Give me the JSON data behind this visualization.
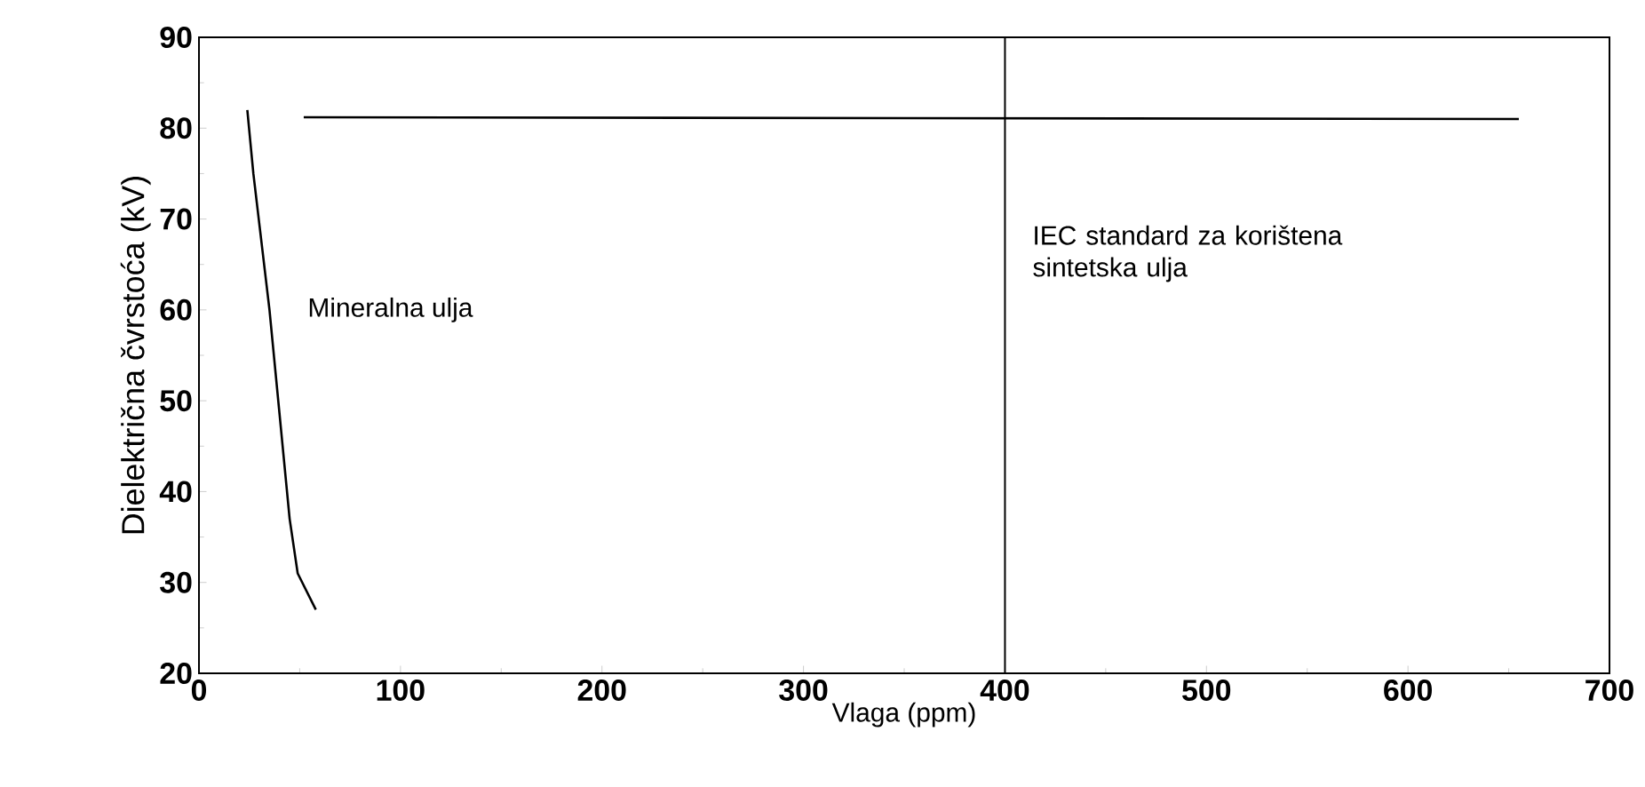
{
  "chart_data": {
    "type": "line",
    "xlabel": "Vlaga (ppm)",
    "ylabel": "Dielektrična čvrstoća (kV)",
    "xlim": [
      0,
      700
    ],
    "xticks": [
      0,
      100,
      200,
      300,
      400,
      500,
      600,
      700
    ],
    "ylim": [
      20,
      90
    ],
    "yticks": [
      20,
      30,
      40,
      50,
      60,
      70,
      80,
      90
    ],
    "grid": false,
    "legend": false,
    "marker": "none",
    "line_style": "solid",
    "series": [
      {
        "name": "Mineralna ulja",
        "color": "#000000",
        "x": [
          24,
          27,
          35,
          40,
          45,
          49,
          58
        ],
        "values": [
          82,
          75,
          60,
          48.5,
          37,
          31,
          27
        ]
      },
      {
        "color": "#000000",
        "x": [
          52,
          655
        ],
        "values": [
          81.2,
          81
        ]
      }
    ],
    "ref_lines": [
      {
        "axis": "x",
        "value": 400,
        "label": "IEC standard za korištena sintetska ulja",
        "color": "#000000",
        "line_style": "solid"
      }
    ]
  }
}
